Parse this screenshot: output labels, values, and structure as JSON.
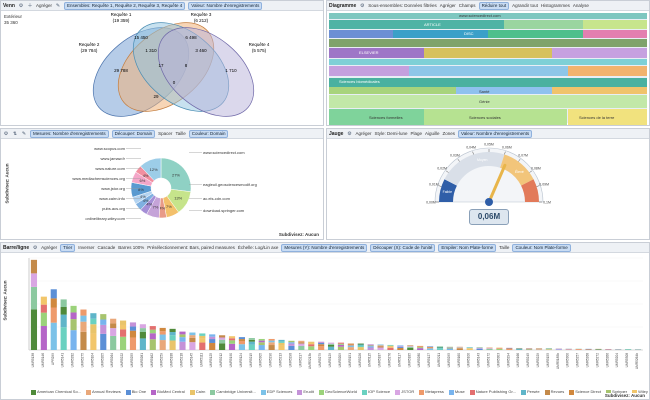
{
  "venn": {
    "title": "Venn",
    "toolbar": {
      "aggregate": "Agréger",
      "sets_chip": "Ensembles: Requête 1, Requête 2, Requête 3, Requête 4",
      "value_chip": "Valeur: Nombre d'enregistrements"
    },
    "side_label": "Extérieur",
    "side_value": "35 360",
    "sets": [
      {
        "name": "Requête 1",
        "count": "(19 359)",
        "color": "#7aa3d6"
      },
      {
        "name": "Requête 2",
        "count": "(29 784)",
        "color": "#f0b27a"
      },
      {
        "name": "Requête 3",
        "count": "(6 212)",
        "color": "#8fc3e0"
      },
      {
        "name": "Requête 4",
        "count": "(5 575)",
        "color": "#b7b2d9"
      }
    ],
    "regions": [
      "15 450",
      "6 498",
      "29 788",
      "1 310",
      "3 460",
      "17",
      "8",
      "0",
      "1 710",
      "29"
    ]
  },
  "treemap": {
    "title": "Diagramme",
    "toolbar": {
      "subsets": "Sous-ensembles: Données filtrées",
      "aggregate": "Agréger",
      "fields": "Champs",
      "reduce": "Réduire tout",
      "expand": "Agrandir tout",
      "histograms": "Histogrammes",
      "analysis": "Analyse"
    },
    "labels": [
      "www.sciencedirect.com",
      "ARTICLE",
      "DISC",
      "ELSEVIER",
      "Sciences biomédicales",
      "Sciences formelles",
      "Sciences sociales",
      "Santé",
      "Sciences de la terre",
      "Chimie",
      "Génie"
    ]
  },
  "donut": {
    "toolbar": {
      "measure": "Mesures: Nombre d'enregistrements",
      "split": "Découper: Domain",
      "spacing": "Spacer",
      "size": "Taille",
      "color": "Couleur: Domain"
    },
    "axis_label": "Subdivisez: Aucun",
    "footer": "Subdivisez: Aucun",
    "slices": [
      {
        "label": "www.sciencedirect.com",
        "pct": "27%",
        "value": 27,
        "color": "#8fd1c4"
      },
      {
        "label": "www.springer.com",
        "pct": "13%",
        "value": 13,
        "color": "#c6e48b"
      },
      {
        "label": "www.jstor.org",
        "pct": "7%",
        "value": 7,
        "color": "#f3c06b"
      },
      {
        "label": "www.mediachemsciences.org",
        "pct": "4%",
        "value": 4,
        "color": "#e89a88"
      },
      {
        "label": "www.nature.com",
        "pct": "7%",
        "value": 7,
        "color": "#c5a3d8"
      },
      {
        "label": "www.jamaw.fr",
        "pct": "4%",
        "value": 4,
        "color": "#a58fd6"
      },
      {
        "label": "www.cairn.info",
        "pct": "4%",
        "value": 4,
        "color": "#7fb0e0"
      },
      {
        "label": "pubs.acs.org",
        "pct": "4%",
        "value": 4,
        "color": "#b3d3f0"
      },
      {
        "label": "onlinelibrary.wiley.com",
        "pct": "8%",
        "value": 8,
        "color": "#5a9ad0"
      },
      {
        "label": "download.springer.com",
        "pct": "6%",
        "value": 6,
        "color": "#f4a6c8"
      },
      {
        "label": "ac.els-cdn.com",
        "pct": "4%",
        "value": 4,
        "color": "#f28fa0"
      },
      {
        "label": "www.scopus.com",
        "pct": "12%",
        "value": 12,
        "color": "#9ccde8"
      }
    ],
    "right_labels": [
      "www.sciencedirect.com",
      "eagleuil.geosciencesmodif.org",
      "ac.els-cdn.com",
      "download.springer.com"
    ],
    "left_labels": [
      "www.scopus.com",
      "www.jamaw.fr",
      "www.nature.com",
      "www.mediachemsciences.org",
      "www.jstor.org",
      "www.cairn.info",
      "pubs.acs.org",
      "onlinelibrary.wiley.com"
    ]
  },
  "gauge": {
    "title": "Jauge",
    "toolbar": {
      "aggregate": "Agréger",
      "style": "Style: Demi-lune",
      "ranges": "Plage",
      "needle": "Aiguille",
      "zones": "Zones",
      "value": "Valeur: Nombre d'enregistrements"
    },
    "value_display": "0,06M",
    "ticks": [
      "0,00M",
      "0,01M",
      "0,02M",
      "0,03M",
      "0,04M",
      "0,05M",
      "0,06M",
      "0,07M",
      "0,08M",
      "0,09M",
      "0,1M"
    ],
    "zone_labels": [
      "Faible",
      "Moyen",
      "Élevé"
    ],
    "needle_fraction": 0.63
  },
  "bars": {
    "title": "Barre/ligne",
    "toolbar": {
      "aggregate": "Agréger",
      "sort": "Trier",
      "invert": "Inverser",
      "cascade": "Cascade",
      "bars100": "Barres 100%",
      "preselection": "Présélectionnement: Bars, paired measures",
      "log": "Échelle: Log/Lin axe",
      "measures": "Mesures (Y): Nombre d'enregistrements",
      "split": "Découper (X): Code de l'unité",
      "display": "Empiler: Nom Plate-forme",
      "size": "Taille",
      "color": "Couleur: Nom Plate-forme"
    },
    "y_axis_label": "Subdivisez: Aucun",
    "x_axis_label": "Subdivisez: Aucun",
    "legend": [
      {
        "name": "American Chemical So...",
        "color": "#4f8a3a"
      },
      {
        "name": "Annual Reviews",
        "color": "#e9a87a"
      },
      {
        "name": "Bio One",
        "color": "#5b8fd6"
      },
      {
        "name": "BioMed Central",
        "color": "#b565c7"
      },
      {
        "name": "Cairn",
        "color": "#e9c46a"
      },
      {
        "name": "Cambridge Universit...",
        "color": "#8cc9a0"
      },
      {
        "name": "EDP Sciences",
        "color": "#7cc2e8"
      },
      {
        "name": "Erudit",
        "color": "#c492d8"
      },
      {
        "name": "GeoScienceWorld",
        "color": "#9bd27a"
      },
      {
        "name": "IOP Science",
        "color": "#6ad1c0"
      },
      {
        "name": "JSTOR",
        "color": "#d9a6e3"
      },
      {
        "name": "Metapress",
        "color": "#ee9a6b"
      },
      {
        "name": "Muse",
        "color": "#78b4ee"
      },
      {
        "name": "Nature Publishing Gr...",
        "color": "#e36f6f"
      },
      {
        "name": "Persée",
        "color": "#5fb5c9"
      },
      {
        "name": "Revues",
        "color": "#c48a4a"
      },
      {
        "name": "Science Direct",
        "color": "#d0883e"
      },
      {
        "name": "Springer",
        "color": "#a7c46e"
      },
      {
        "name": "Wiley",
        "color": "#f2c66b"
      }
    ]
  },
  "chart_data": {
    "type": "bar",
    "title": "",
    "xlabel": "Subdivisez: Aucun",
    "ylabel": "Subdivisez: Aucun",
    "ylim": [
      0,
      1
    ],
    "categories": [
      "UMR5138",
      "UMR5146",
      "UPR299",
      "UMR5141",
      "UMR5282",
      "UMR5275",
      "UMR5104",
      "UMR5205",
      "UMR5264",
      "UMR5222",
      "UMR5255",
      "UMR5281",
      "UMR5162",
      "UMR5259",
      "UMR5188",
      "UMR5218",
      "UMR5145",
      "UMR5111",
      "UMR5125",
      "UMR5212",
      "UMR5190",
      "UMR5124",
      "UMR5215",
      "UMR5305",
      "UMR5290",
      "UMR5213",
      "UMR5298",
      "UMR5217",
      "UMR5213b",
      "UMR5279",
      "UMR5129",
      "UMR5209",
      "UMR5151",
      "UMR5226",
      "UMR5115",
      "UMR5187",
      "UMR5276",
      "UMR5117",
      "UMR5185",
      "UMR5280",
      "UMR5127",
      "UMR5211",
      "UMR5295",
      "UMR5160",
      "UMR5100",
      "UMR5143",
      "UMR5172",
      "UMR5303",
      "UMR5294",
      "UMR5166",
      "UMR5245",
      "UMR5229",
      "UMR5155",
      "UMR5185b",
      "UMR5300",
      "UMR5257",
      "UMR5268",
      "UMR5272",
      "UMR5266",
      "UMR5204",
      "UMR5308",
      "UMR5264b"
    ],
    "values": [
      0.98,
      0.58,
      0.66,
      0.55,
      0.48,
      0.44,
      0.4,
      0.39,
      0.34,
      0.32,
      0.3,
      0.28,
      0.26,
      0.24,
      0.23,
      0.2,
      0.19,
      0.18,
      0.17,
      0.16,
      0.15,
      0.14,
      0.13,
      0.12,
      0.12,
      0.11,
      0.1,
      0.1,
      0.09,
      0.09,
      0.08,
      0.08,
      0.07,
      0.07,
      0.06,
      0.06,
      0.055,
      0.05,
      0.05,
      0.045,
      0.04,
      0.04,
      0.035,
      0.035,
      0.03,
      0.03,
      0.028,
      0.026,
      0.024,
      0.022,
      0.02,
      0.02,
      0.018,
      0.016,
      0.015,
      0.014,
      0.013,
      0.012,
      0.011,
      0.01,
      0.01,
      0.009
    ]
  }
}
